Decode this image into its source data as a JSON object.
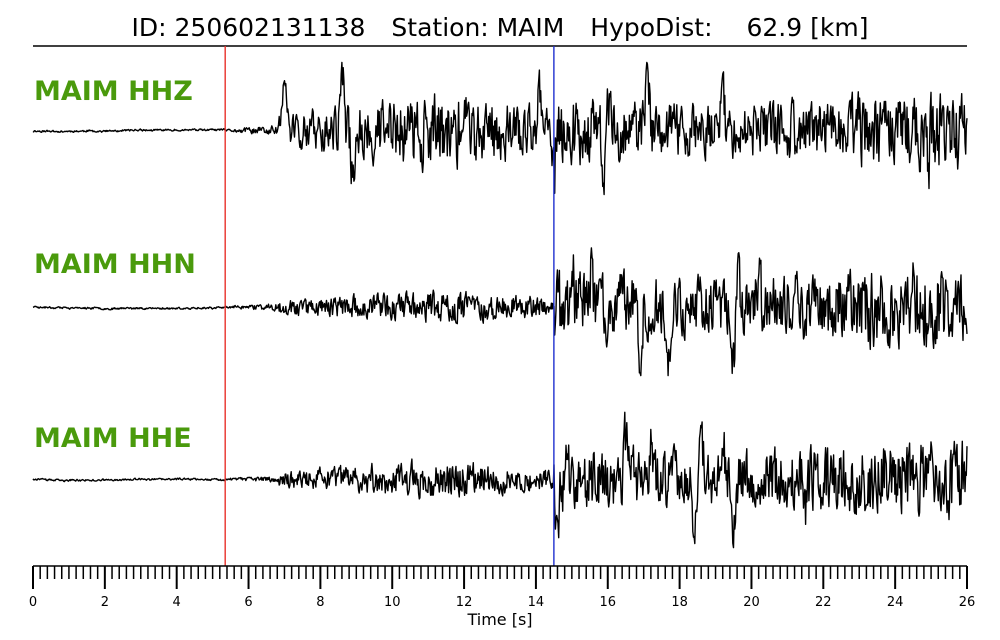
{
  "title": {
    "id_text": "ID: 250602131138",
    "station_text": "Station: MAIM",
    "dist_label": "HypoDist:",
    "dist_value": "62.9 [km]"
  },
  "colors": {
    "label": "#4a9a0c",
    "p_pick": "#e8302a",
    "s_pick": "#1f2fcf",
    "trace": "#000000"
  },
  "chart_data": {
    "type": "line",
    "title": "ID: 250602131138   Station: MAIM   HypoDist:    62.9 [km]",
    "xlabel": "Time [s]",
    "xlim": [
      0,
      26
    ],
    "x_ticks": [
      "0",
      "2",
      "4",
      "6",
      "8",
      "10",
      "12",
      "14",
      "16",
      "18",
      "20",
      "22",
      "24",
      "26"
    ],
    "grid": false,
    "picks": [
      {
        "phase": "P",
        "time": 5.35,
        "color": "#e8302a"
      },
      {
        "phase": "S",
        "time": 14.5,
        "color": "#1f2fcf"
      }
    ],
    "series": [
      {
        "name": "MAIM HHZ",
        "noise": 0.02,
        "pre": 0.12,
        "p_amp": 0.75,
        "s_amp": 0.8,
        "seed": 11,
        "peaks": [
          [
            7.0,
            0.9
          ],
          [
            8.6,
            0.95
          ],
          [
            8.9,
            -0.7
          ],
          [
            14.1,
            0.7
          ],
          [
            14.5,
            -0.6
          ],
          [
            15.9,
            -0.8
          ],
          [
            17.1,
            1.0
          ],
          [
            16.0,
            0.6
          ],
          [
            19.2,
            0.7
          ],
          [
            24.9,
            -0.6
          ]
        ]
      },
      {
        "name": "MAIM HHN",
        "noise": 0.02,
        "pre": 0.08,
        "p_amp": 0.33,
        "s_amp": 0.85,
        "seed": 23,
        "peaks": [
          [
            15.0,
            0.75
          ],
          [
            15.5,
            0.6
          ],
          [
            16.4,
            0.7
          ],
          [
            16.9,
            -0.95
          ],
          [
            17.7,
            -0.8
          ],
          [
            19.5,
            -1.0
          ],
          [
            19.6,
            0.55
          ],
          [
            20.2,
            0.5
          ],
          [
            24.5,
            0.45
          ]
        ]
      },
      {
        "name": "MAIM HHE",
        "noise": 0.02,
        "pre": 0.07,
        "p_amp": 0.38,
        "s_amp": 0.85,
        "seed": 37,
        "peaks": [
          [
            16.5,
            0.75
          ],
          [
            17.2,
            0.7
          ],
          [
            18.6,
            0.8
          ],
          [
            19.2,
            0.75
          ],
          [
            19.5,
            -1.0
          ],
          [
            18.4,
            -0.6
          ],
          [
            14.6,
            -0.5
          ],
          [
            21.5,
            -0.5
          ]
        ]
      }
    ]
  }
}
